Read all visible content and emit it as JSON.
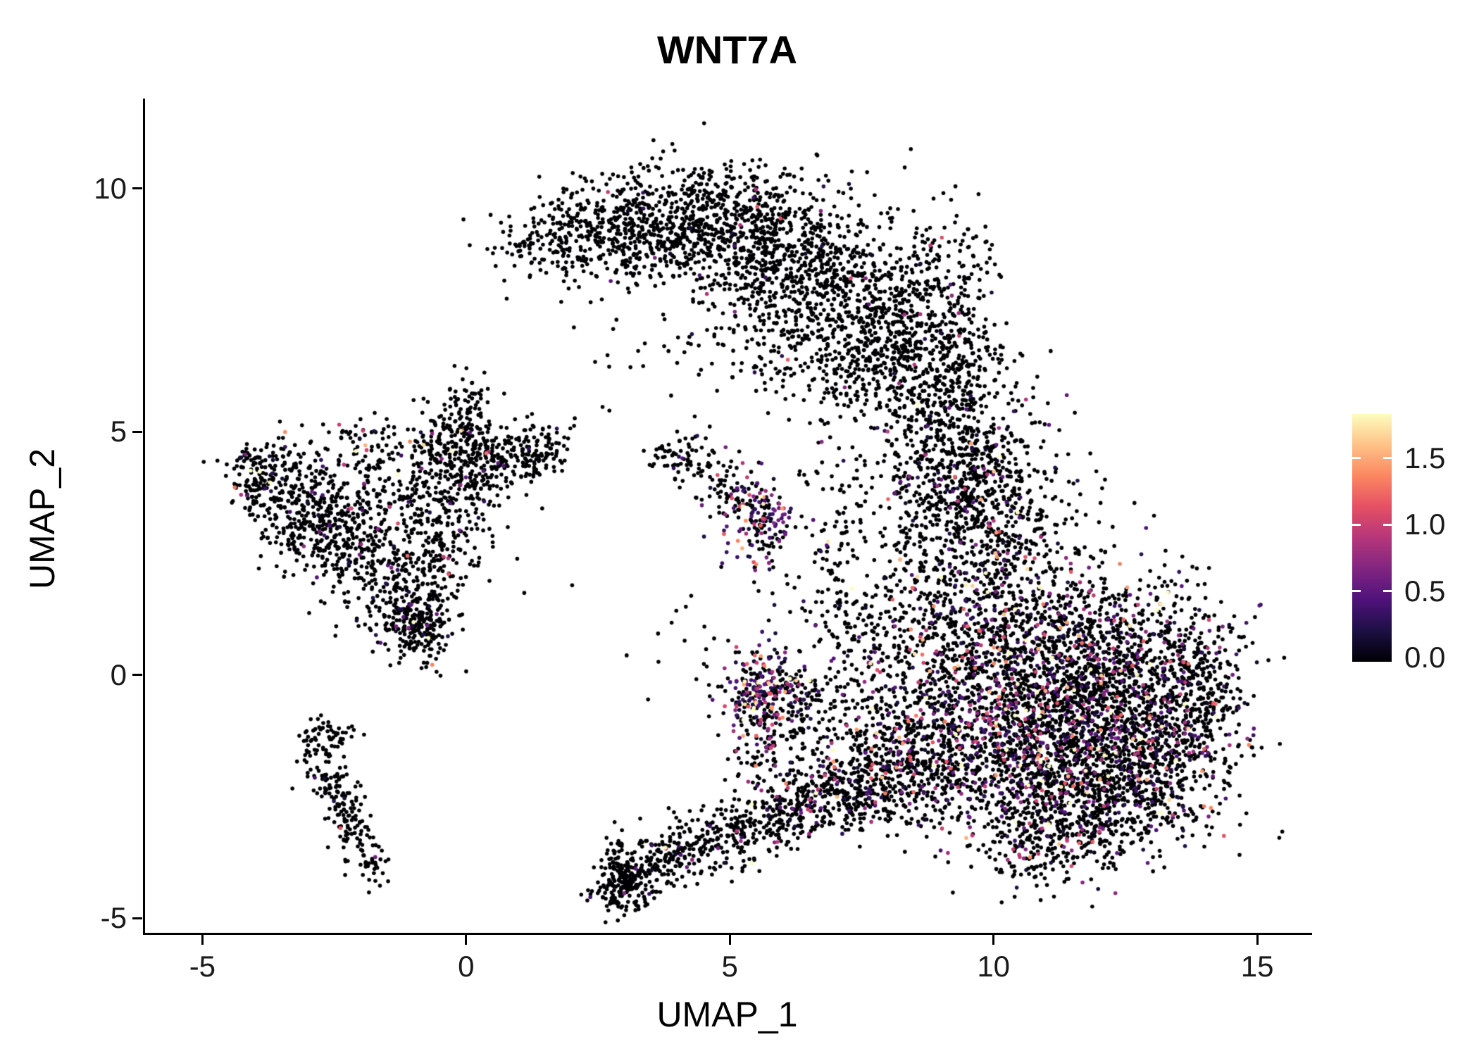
{
  "chart_data": {
    "type": "scatter",
    "title": "WNT7A",
    "xlabel": "UMAP_1",
    "ylabel": "UMAP_2",
    "xlim": [
      -6.1,
      16.0
    ],
    "ylim": [
      -5.3,
      11.85
    ],
    "grid": false,
    "point_color_zero": "#000004",
    "x_ticks": {
      "values": [
        -5,
        0,
        5,
        10,
        15
      ],
      "labels": [
        "-5",
        "0",
        "5",
        "10",
        "15"
      ]
    },
    "y_ticks": {
      "values": [
        -5,
        0,
        5,
        10
      ],
      "labels": [
        "-5",
        "0",
        "5",
        "10"
      ]
    },
    "colorbar": {
      "position": "right",
      "vmin": 0.0,
      "vmax": 1.8,
      "colormap": "magma",
      "ticks": {
        "values": [
          1.5,
          1.0,
          0.5,
          0.0
        ],
        "labels": [
          "1.5",
          "1.0",
          "0.5",
          "0.0"
        ]
      },
      "stops": [
        [
          0.0,
          "#000004"
        ],
        [
          0.125,
          "#1c1044"
        ],
        [
          0.25,
          "#4f127b"
        ],
        [
          0.375,
          "#812581"
        ],
        [
          0.5,
          "#b5367a"
        ],
        [
          0.625,
          "#e55064"
        ],
        [
          0.75,
          "#fb8761"
        ],
        [
          0.875,
          "#fec287"
        ],
        [
          1.0,
          "#fcfdbf"
        ]
      ]
    },
    "cluster_fields": [
      "center_x",
      "center_y",
      "sigma_x",
      "sigma_y",
      "rotation_rad",
      "n_points",
      "expressing_fraction",
      "expression_scale"
    ],
    "clusters": [
      [
        1.35,
        8.8,
        0.45,
        0.3,
        0,
        70,
        0.01,
        0.35
      ],
      [
        2.3,
        9.0,
        0.7,
        0.5,
        0,
        200,
        0.01,
        0.35
      ],
      [
        3.3,
        9.35,
        0.7,
        0.55,
        0,
        280,
        0.01,
        0.35
      ],
      [
        4.35,
        9.4,
        0.7,
        0.6,
        0,
        320,
        0.015,
        0.35
      ],
      [
        5.35,
        9.1,
        0.7,
        0.7,
        0,
        340,
        0.015,
        0.35
      ],
      [
        6.2,
        8.5,
        0.65,
        0.8,
        -0.5,
        340,
        0.02,
        0.4
      ],
      [
        7.0,
        7.8,
        0.65,
        0.9,
        -0.4,
        330,
        0.02,
        0.4
      ],
      [
        7.8,
        7.1,
        0.6,
        0.9,
        -0.3,
        310,
        0.02,
        0.4
      ],
      [
        8.55,
        6.6,
        0.55,
        0.85,
        0,
        270,
        0.02,
        0.4
      ],
      [
        9.25,
        7.9,
        0.45,
        1.0,
        0,
        170,
        0.02,
        0.4
      ],
      [
        9.35,
        6.3,
        0.4,
        0.6,
        0,
        110,
        0.02,
        0.4
      ],
      [
        6.6,
        6.3,
        1.3,
        0.55,
        -0.3,
        130,
        0.02,
        0.4
      ],
      [
        5.0,
        7.3,
        1.5,
        0.8,
        0,
        60,
        0.01,
        0.35
      ],
      [
        8.95,
        5.3,
        0.5,
        0.7,
        0,
        130,
        0.04,
        0.45
      ],
      [
        9.4,
        4.3,
        0.55,
        0.8,
        0,
        190,
        0.06,
        0.45
      ],
      [
        10.2,
        4.6,
        0.6,
        0.8,
        0,
        120,
        0.08,
        0.5
      ],
      [
        8.6,
        3.3,
        0.5,
        1.0,
        0,
        150,
        0.05,
        0.45
      ],
      [
        10.1,
        2.9,
        0.8,
        0.8,
        0,
        260,
        0.15,
        0.5
      ],
      [
        9.6,
        1.6,
        0.8,
        0.9,
        0,
        300,
        0.18,
        0.55
      ],
      [
        10.8,
        0.6,
        1.0,
        0.95,
        0,
        480,
        0.22,
        0.55
      ],
      [
        12.0,
        0.4,
        1.0,
        0.9,
        0,
        470,
        0.2,
        0.55
      ],
      [
        13.2,
        0.1,
        0.8,
        0.85,
        0,
        360,
        0.18,
        0.5
      ],
      [
        13.95,
        -0.4,
        0.45,
        0.9,
        0,
        150,
        0.12,
        0.5
      ],
      [
        10.5,
        -0.9,
        1.0,
        0.9,
        0,
        520,
        0.24,
        0.6
      ],
      [
        11.8,
        -1.1,
        1.0,
        0.9,
        0,
        520,
        0.22,
        0.55
      ],
      [
        13.1,
        -1.4,
        0.85,
        0.8,
        0,
        400,
        0.18,
        0.5
      ],
      [
        10.8,
        -2.2,
        1.0,
        0.7,
        0,
        420,
        0.22,
        0.55
      ],
      [
        12.2,
        -2.5,
        1.0,
        0.65,
        0,
        380,
        0.18,
        0.5
      ],
      [
        11.3,
        -3.3,
        0.95,
        0.5,
        0.15,
        280,
        0.15,
        0.5
      ],
      [
        9.3,
        0.1,
        0.6,
        1.0,
        0,
        220,
        0.18,
        0.55
      ],
      [
        9.0,
        -1.7,
        0.7,
        0.8,
        0,
        240,
        0.2,
        0.55
      ],
      [
        9.7,
        3.8,
        0.6,
        0.6,
        0,
        150,
        0.12,
        0.5
      ],
      [
        -2.9,
        3.4,
        0.55,
        0.55,
        0,
        290,
        0.05,
        0.45
      ],
      [
        -3.6,
        4.1,
        0.4,
        0.4,
        0,
        120,
        0.04,
        0.45
      ],
      [
        -4.05,
        4.15,
        0.22,
        0.35,
        0,
        55,
        0.1,
        0.8
      ],
      [
        -2.2,
        2.85,
        0.5,
        0.4,
        0.4,
        140,
        0.04,
        0.45
      ],
      [
        -1.6,
        1.9,
        0.5,
        0.5,
        0.6,
        150,
        0.05,
        0.45
      ],
      [
        -0.95,
        1.15,
        0.3,
        0.45,
        0.3,
        210,
        0.1,
        0.5
      ],
      [
        -0.55,
        2.7,
        0.45,
        0.7,
        0,
        160,
        0.04,
        0.45
      ],
      [
        -0.3,
        4.25,
        0.5,
        0.6,
        0,
        240,
        0.06,
        0.5
      ],
      [
        -0.1,
        5.3,
        0.28,
        0.45,
        0,
        110,
        0.03,
        0.45
      ],
      [
        0.6,
        4.45,
        0.5,
        0.4,
        0,
        160,
        0.05,
        0.5
      ],
      [
        1.3,
        4.6,
        0.4,
        0.28,
        0,
        85,
        0.04,
        0.45
      ],
      [
        -1.9,
        4.65,
        0.38,
        0.28,
        0,
        70,
        0.08,
        0.5
      ],
      [
        -1.6,
        3.4,
        0.9,
        0.8,
        0,
        140,
        0.04,
        0.45
      ],
      [
        -0.75,
        0.75,
        0.3,
        0.3,
        0,
        40,
        0.05,
        0.45
      ],
      [
        -2.75,
        -1.55,
        0.22,
        0.4,
        0,
        55,
        0.03,
        0.4
      ],
      [
        -2.5,
        -2.35,
        0.22,
        0.45,
        0.2,
        70,
        0.04,
        0.4
      ],
      [
        -2.15,
        -3.1,
        0.22,
        0.45,
        0.25,
        60,
        0.04,
        0.4
      ],
      [
        -1.85,
        -3.7,
        0.18,
        0.3,
        0.3,
        40,
        0.03,
        0.4
      ],
      [
        -2.6,
        -1.2,
        0.3,
        0.15,
        0,
        25,
        0.02,
        0.4
      ],
      [
        5.6,
        3.15,
        0.32,
        0.5,
        0,
        170,
        0.5,
        0.5
      ],
      [
        4.95,
        3.85,
        0.28,
        0.28,
        0,
        55,
        0.15,
        0.45
      ],
      [
        4.3,
        4.4,
        0.33,
        0.28,
        0,
        65,
        0.05,
        0.45
      ],
      [
        3.75,
        4.55,
        0.2,
        0.15,
        0,
        15,
        0.0,
        0.45
      ],
      [
        5.55,
        -0.3,
        0.3,
        0.45,
        0,
        180,
        0.65,
        0.7
      ],
      [
        5.75,
        -0.85,
        0.45,
        0.5,
        0,
        100,
        0.3,
        0.6
      ],
      [
        5.5,
        -1.7,
        0.35,
        0.5,
        0,
        55,
        0.25,
        0.6
      ],
      [
        6.3,
        -0.4,
        0.4,
        0.5,
        0,
        70,
        0.2,
        0.55
      ],
      [
        3.05,
        -4.15,
        0.22,
        0.38,
        0.25,
        170,
        0.04,
        0.45
      ],
      [
        2.8,
        -4.45,
        0.25,
        0.18,
        0,
        45,
        0.02,
        0.45
      ],
      [
        3.55,
        -3.95,
        0.4,
        0.3,
        0.3,
        95,
        0.04,
        0.45
      ],
      [
        4.3,
        -3.6,
        0.5,
        0.33,
        0.25,
        115,
        0.05,
        0.45
      ],
      [
        5.1,
        -3.25,
        0.5,
        0.33,
        0.25,
        115,
        0.08,
        0.5
      ],
      [
        5.9,
        -2.95,
        0.5,
        0.35,
        0.2,
        125,
        0.12,
        0.6
      ],
      [
        6.65,
        -2.6,
        0.5,
        0.35,
        0.2,
        135,
        0.15,
        0.6
      ],
      [
        7.4,
        -2.35,
        0.5,
        0.4,
        0.2,
        150,
        0.12,
        0.5
      ],
      [
        8.2,
        -2.05,
        0.55,
        0.5,
        0.2,
        190,
        0.15,
        0.55
      ],
      [
        6.9,
        -1.4,
        0.8,
        0.55,
        0,
        110,
        0.1,
        0.5
      ],
      [
        7.9,
        -0.8,
        0.6,
        0.6,
        0,
        120,
        0.15,
        0.55
      ],
      [
        7.0,
        2.6,
        0.28,
        0.85,
        0,
        65,
        0.08,
        0.5
      ],
      [
        7.45,
        1.3,
        0.5,
        0.6,
        0,
        70,
        0.1,
        0.5
      ],
      [
        8.0,
        0.3,
        0.6,
        0.7,
        0,
        100,
        0.15,
        0.5
      ],
      [
        6.2,
        1.2,
        1.0,
        0.8,
        0,
        35,
        0.05,
        0.45
      ],
      [
        7.1,
        4.2,
        0.4,
        0.4,
        0,
        25,
        0.0,
        0.45
      ],
      [
        4.7,
        0.6,
        0.8,
        0.8,
        0,
        18,
        0.0,
        0.45
      ],
      [
        2.2,
        2.2,
        1.2,
        1.2,
        0,
        8,
        0.0,
        0.45
      ]
    ]
  }
}
